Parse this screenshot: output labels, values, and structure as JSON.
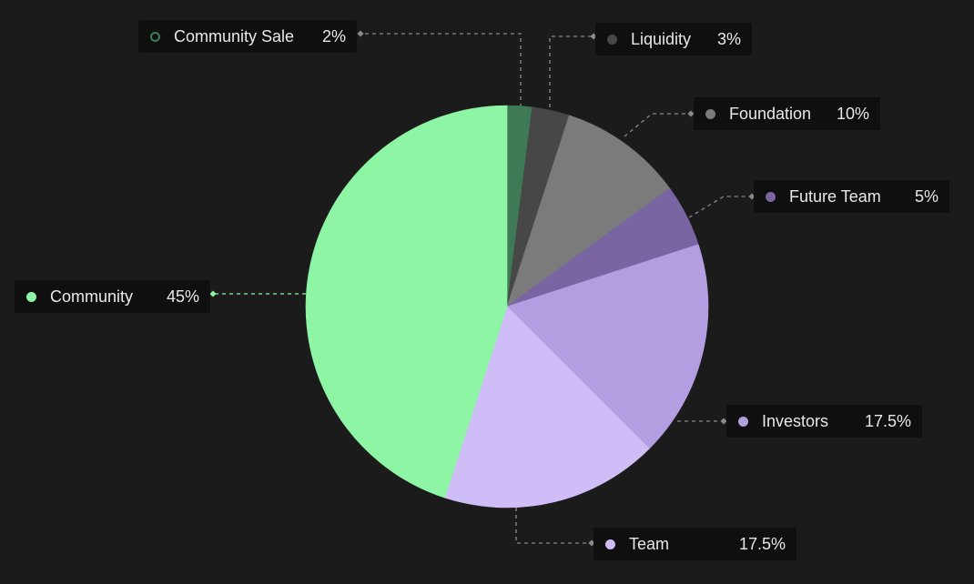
{
  "chart_data": {
    "type": "pie",
    "title": "",
    "slices": [
      {
        "name": "Community Sale",
        "value": 2,
        "label": "2%",
        "color": "#3f7a57"
      },
      {
        "name": "Liquidity",
        "value": 3,
        "label": "3%",
        "color": "#474747"
      },
      {
        "name": "Foundation",
        "value": 10,
        "label": "10%",
        "color": "#7b7b7b"
      },
      {
        "name": "Future Team",
        "value": 5,
        "label": "5%",
        "color": "#7a65a3"
      },
      {
        "name": "Investors",
        "value": 17.5,
        "label": "17.5%",
        "color": "#b29ee0"
      },
      {
        "name": "Team",
        "value": 17.5,
        "label": "17.5%",
        "color": "#cfbdf7"
      },
      {
        "name": "Community",
        "value": 45,
        "label": "45%",
        "color": "#8ef5a5"
      }
    ],
    "start": "12 o'clock",
    "direction": "clockwise",
    "legend": "callout labels"
  },
  "colors": {
    "background": "#1b1b1b",
    "label_background": "#0f0f0f",
    "connector": "#8a8a8a"
  }
}
